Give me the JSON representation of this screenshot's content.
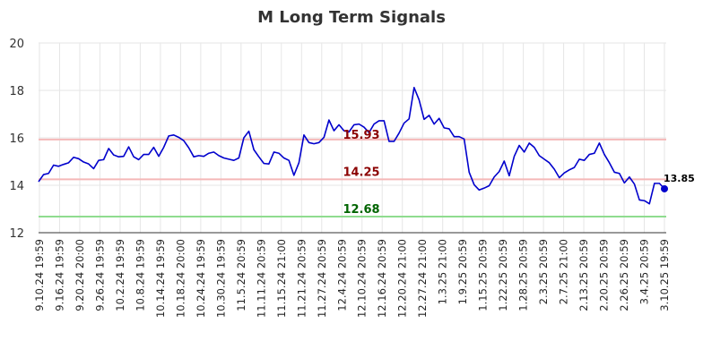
{
  "chart_data": {
    "type": "line",
    "title": "M Long Term Signals",
    "xlabel": "",
    "ylabel": "",
    "ylim": [
      12,
      20
    ],
    "yticks": [
      12,
      14,
      16,
      18,
      20
    ],
    "grid": true,
    "x_tick_labels": [
      "9.10.24 19:59",
      "9.16.24 19:59",
      "9.20.24 20:00",
      "9.26.24 19:59",
      "10.2.24 19:59",
      "10.8.24 19:59",
      "10.14.24 19:59",
      "10.18.24 20:00",
      "10.24.24 19:59",
      "10.30.24 19:59",
      "11.5.24 20:59",
      "11.11.24 20:59",
      "11.15.24 21:00",
      "11.21.24 20:59",
      "11.27.24 20:59",
      "12.4.24 20:59",
      "12.10.24 20:59",
      "12.16.24 20:59",
      "12.20.24 21:00",
      "12.27.24 21:00",
      "1.3.25 21:00",
      "1.9.25 20:59",
      "1.15.25 20:59",
      "1.22.25 20:59",
      "1.28.25 20:59",
      "2.3.25 20:59",
      "2.7.25 21:00",
      "2.13.25 20:59",
      "2.20.25 20:59",
      "2.26.25 20:59",
      "3.4.25 20:59",
      "3.10.25 19:59"
    ],
    "series": [
      {
        "color": "#0000cc",
        "values": [
          14.15,
          14.45,
          14.5,
          14.85,
          14.8,
          14.88,
          14.95,
          15.18,
          15.12,
          14.98,
          14.9,
          14.7,
          15.05,
          15.08,
          15.55,
          15.28,
          15.2,
          15.22,
          15.62,
          15.2,
          15.08,
          15.3,
          15.3,
          15.6,
          15.22,
          15.6,
          16.08,
          16.12,
          16.02,
          15.88,
          15.58,
          15.2,
          15.25,
          15.22,
          15.35,
          15.4,
          15.25,
          15.15,
          15.1,
          15.05,
          15.15,
          16.0,
          16.28,
          15.5,
          15.2,
          14.92,
          14.9,
          15.4,
          15.35,
          15.15,
          15.05,
          14.42,
          14.95,
          16.12,
          15.8,
          15.75,
          15.8,
          16.02,
          16.75,
          16.3,
          16.55,
          16.3,
          16.25,
          16.55,
          16.58,
          16.45,
          16.22,
          16.58,
          16.72,
          16.72,
          15.85,
          15.85,
          16.2,
          16.62,
          16.8,
          18.12,
          17.6,
          16.78,
          16.95,
          16.58,
          16.82,
          16.42,
          16.38,
          16.05,
          16.05,
          15.95,
          14.55,
          14.02,
          13.8,
          13.88,
          13.98,
          14.35,
          14.58,
          15.02,
          14.4,
          15.22,
          15.68,
          15.4,
          15.78,
          15.6,
          15.25,
          15.1,
          14.95,
          14.68,
          14.32,
          14.52,
          14.65,
          14.75,
          15.1,
          15.05,
          15.3,
          15.35,
          15.78,
          15.3,
          14.95,
          14.55,
          14.5,
          14.1,
          14.35,
          14.05,
          13.38,
          13.35,
          13.22,
          14.08,
          14.08,
          13.85
        ]
      }
    ],
    "reference_lines": [
      {
        "value": 15.93,
        "label": "15.93",
        "color": "#f5b8b8",
        "label_color": "#8b0000"
      },
      {
        "value": 14.25,
        "label": "14.25",
        "color": "#f5b8b8",
        "label_color": "#8b0000"
      },
      {
        "value": 12.68,
        "label": "12.68",
        "color": "#8fdc8f",
        "label_color": "#006400"
      }
    ],
    "last_point": {
      "value": 13.85,
      "label": "13.85",
      "color": "#0000cc"
    }
  }
}
